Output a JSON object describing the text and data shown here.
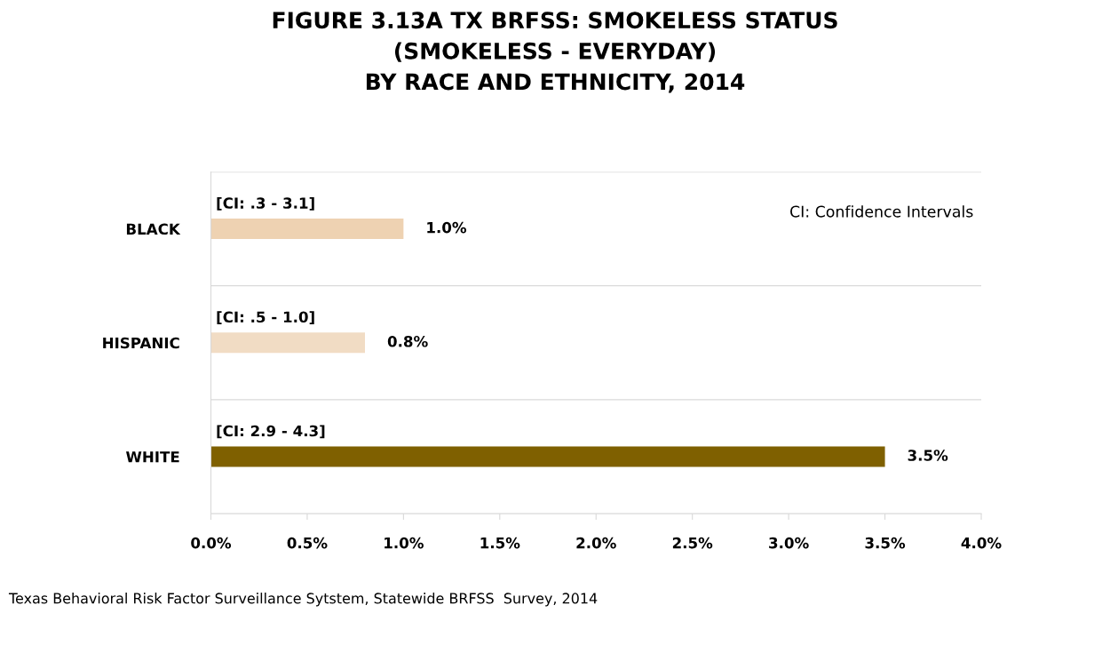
{
  "chart_data": {
    "type": "bar",
    "orientation": "horizontal",
    "title": "FIGURE 3.13A TX BRFSS: SMOKELESS STATUS\n(SMOKELESS - EVERYDAY)\nBY RACE AND ETHNICITY, 2014",
    "categories": [
      "BLACK",
      "HISPANIC",
      "WHITE"
    ],
    "values": [
      1.0,
      0.8,
      3.5
    ],
    "colors": [
      "#eed2b2",
      "#f1dcc4",
      "#7f6000"
    ],
    "value_labels": [
      "1.0%",
      "0.8%",
      "3.5%"
    ],
    "xlim": [
      0,
      4
    ],
    "xticks": [
      {
        "value": 0,
        "label": "0.0%"
      },
      {
        "value": 0.5,
        "label": "0.5%"
      },
      {
        "value": 1,
        "label": "1.0%"
      },
      {
        "value": 1.5,
        "label": "1.5%"
      },
      {
        "value": 2,
        "label": "2.0%"
      },
      {
        "value": 2.5,
        "label": "2.5%"
      },
      {
        "value": 3,
        "label": "3.0%"
      },
      {
        "value": 3.5,
        "label": "3.5%"
      },
      {
        "value": 4,
        "label": "4.0%"
      }
    ],
    "grid": "y",
    "annotations": [
      "[CI: .3 - 3.1]",
      "[CI: .5 - 1.0]",
      "[CI: 2.9 - 4.3]",
      "CI: Confidence Intervals",
      "Texas Behavioral Risk Factor Surveillance Sytstem, Statewide BRFSS  Survey, 2014"
    ]
  }
}
